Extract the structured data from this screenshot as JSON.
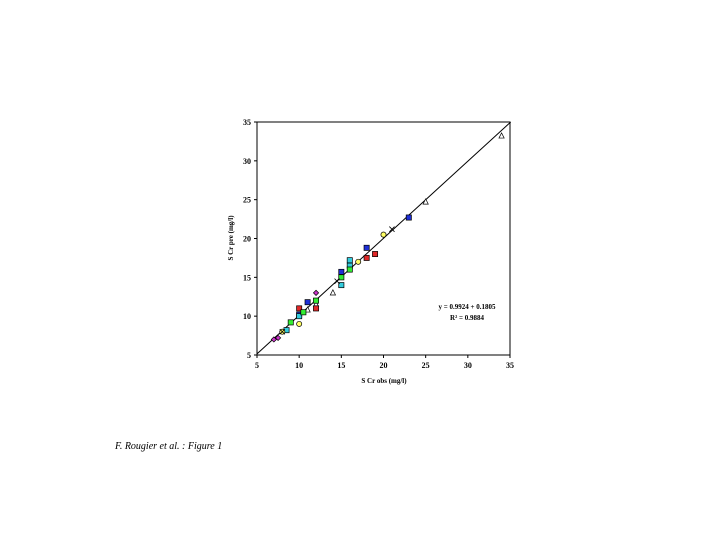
{
  "caption": "F. Rougier et al. : Figure 1",
  "chart_data": {
    "type": "scatter",
    "xlabel": "S Cr obs (mg/l)",
    "ylabel": "S Cr pre (mg/l)",
    "xlim": [
      5,
      35
    ],
    "ylim": [
      5,
      35
    ],
    "xticks": [
      5,
      10,
      15,
      20,
      25,
      30,
      35
    ],
    "yticks": [
      5,
      10,
      15,
      20,
      25,
      30,
      35
    ],
    "grid": false,
    "equation": "y = 0.9924 + 0.1805",
    "r_squared": "R² = 0.9884",
    "fit": {
      "slope": 0.9924,
      "intercept": 0.1805
    },
    "series": [
      {
        "marker": "triangle",
        "color": "#ffffff",
        "stroke": "#000000",
        "x": [
          34.0,
          25.0,
          14.0,
          12.0,
          11.0
        ],
        "y": [
          33.2,
          24.7,
          13.0,
          11.5,
          10.8
        ]
      },
      {
        "marker": "square",
        "color": "#1e2fd6",
        "stroke": "#000000",
        "x": [
          23.0,
          18.0,
          15.0,
          11.0,
          10.0
        ],
        "y": [
          22.7,
          18.8,
          15.7,
          11.8,
          10.2
        ]
      },
      {
        "marker": "square",
        "color": "#e02828",
        "stroke": "#000000",
        "x": [
          19.0,
          18.0,
          10.0,
          12.0
        ],
        "y": [
          18.0,
          17.5,
          11.0,
          11.0
        ]
      },
      {
        "marker": "square",
        "color": "#33ccdd",
        "stroke": "#000000",
        "x": [
          16.0,
          16.0,
          15.0,
          10.0,
          8.5
        ],
        "y": [
          17.2,
          16.5,
          14.0,
          10.0,
          8.2
        ]
      },
      {
        "marker": "square",
        "color": "#33ee33",
        "stroke": "#000000",
        "x": [
          16.0,
          15.0,
          12.0,
          9.0,
          10.5
        ],
        "y": [
          16.0,
          15.0,
          12.0,
          9.2,
          10.5
        ]
      },
      {
        "marker": "circle",
        "color": "#ffff66",
        "stroke": "#000000",
        "x": [
          20.0,
          17.0,
          10.0,
          8.0
        ],
        "y": [
          20.5,
          17.0,
          9.0,
          8.0
        ]
      },
      {
        "marker": "diamond",
        "color": "#cc33cc",
        "stroke": "#000000",
        "x": [
          12.0,
          7.5,
          7.0
        ],
        "y": [
          13.0,
          7.2,
          7.0
        ]
      },
      {
        "marker": "cross",
        "color": "#000000",
        "stroke": "#000000",
        "x": [
          21.0,
          14.5,
          8.0
        ],
        "y": [
          21.2,
          14.5,
          8.0
        ]
      }
    ]
  }
}
